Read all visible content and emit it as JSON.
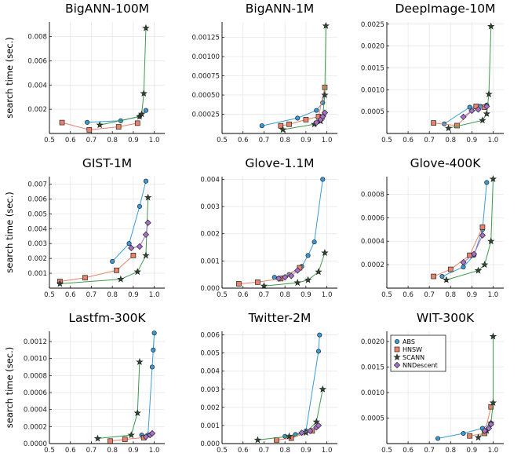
{
  "figure": {
    "ylabel": "search time (sec.)"
  },
  "colors": {
    "ABS": "#3a9bd9",
    "HNSW": "#e8826a",
    "SCANN": "#3c9a4d",
    "NNDescent": "#a870c8"
  },
  "legend": {
    "entries": [
      "ABS",
      "HNSW",
      "SCANN",
      "NNDescent"
    ],
    "position": "top-left",
    "panel": "WIT-300K"
  },
  "chart_data": [
    {
      "type": "line",
      "title": "BigANN-100M",
      "xlim": [
        0.5,
        1.05
      ],
      "ylim": [
        0,
        0.0092
      ],
      "xticks": [
        "0.5",
        "0.6",
        "0.7",
        "0.8",
        "0.9",
        "1.0"
      ],
      "yticks": [
        {
          "v": 0.002,
          "label": "0.002"
        },
        {
          "v": 0.004,
          "label": "0.004"
        },
        {
          "v": 0.006,
          "label": "0.006"
        },
        {
          "v": 0.008,
          "label": "0.008"
        }
      ],
      "series": [
        {
          "name": "ABS",
          "x": [
            0.68,
            0.84,
            0.93,
            0.96
          ],
          "y": [
            0.00092,
            0.00105,
            0.0014,
            0.0019
          ]
        },
        {
          "name": "HNSW",
          "x": [
            0.56,
            0.69,
            0.83,
            0.92
          ],
          "y": [
            0.0009,
            0.0003,
            0.00055,
            0.00085
          ]
        },
        {
          "name": "SCANN",
          "x": [
            0.74,
            0.93,
            0.94,
            0.95,
            0.96
          ],
          "y": [
            0.0007,
            0.0014,
            0.0016,
            0.0033,
            0.0087
          ]
        },
        {
          "name": "NNDescent",
          "x": [],
          "y": []
        }
      ]
    },
    {
      "type": "line",
      "title": "BigANN-1M",
      "xlim": [
        0.5,
        1.05
      ],
      "ylim": [
        0,
        0.00145
      ],
      "xticks": [
        "0.5",
        "0.6",
        "0.7",
        "0.8",
        "0.9",
        "1.0"
      ],
      "yticks": [
        {
          "v": 0.00025,
          "label": "0.00025"
        },
        {
          "v": 0.0005,
          "label": "0.00050"
        },
        {
          "v": 0.00075,
          "label": "0.00075"
        },
        {
          "v": 0.001,
          "label": "0.00100"
        },
        {
          "v": 0.00125,
          "label": "0.00125"
        }
      ],
      "series": [
        {
          "name": "ABS",
          "x": [
            0.69,
            0.86,
            0.95,
            0.98,
            0.99
          ],
          "y": [
            0.0001,
            0.0002,
            0.0003,
            0.0004,
            0.0006
          ]
        },
        {
          "name": "HNSW",
          "x": [
            0.78,
            0.82,
            0.9,
            0.96,
            0.99
          ],
          "y": [
            0.0001,
            0.00012,
            0.00018,
            0.00022,
            0.0006
          ]
        },
        {
          "name": "SCANN",
          "x": [
            0.79,
            0.94,
            0.97,
            0.98,
            0.99,
            0.995
          ],
          "y": [
            5e-05,
            0.00012,
            0.00016,
            0.00022,
            0.0005,
            0.0014
          ]
        },
        {
          "name": "NNDescent",
          "x": [
            0.95,
            0.97,
            0.98,
            0.99
          ],
          "y": [
            0.00014,
            0.00018,
            0.00022,
            0.00027
          ]
        }
      ]
    },
    {
      "type": "line",
      "title": "DeepImage-10M",
      "xlim": [
        0.5,
        1.05
      ],
      "ylim": [
        0,
        0.00255
      ],
      "xticks": [
        "0.5",
        "0.6",
        "0.7",
        "0.8",
        "0.9",
        "1.0"
      ],
      "yticks": [
        {
          "v": 0.0005,
          "label": "0.0005"
        },
        {
          "v": 0.001,
          "label": "0.0010"
        },
        {
          "v": 0.0015,
          "label": "0.0015"
        },
        {
          "v": 0.002,
          "label": "0.0020"
        },
        {
          "v": 0.0025,
          "label": "0.0025"
        }
      ],
      "series": [
        {
          "name": "ABS",
          "x": [
            0.77,
            0.89,
            0.94,
            0.97
          ],
          "y": [
            0.00022,
            0.0006,
            0.00062,
            0.00065
          ]
        },
        {
          "name": "HNSW",
          "x": [
            0.72,
            0.83,
            0.92,
            0.96
          ],
          "y": [
            0.00024,
            0.00018,
            0.00062,
            0.0006
          ]
        },
        {
          "name": "SCANN",
          "x": [
            0.79,
            0.95,
            0.97,
            0.98,
            0.99
          ],
          "y": [
            0.00012,
            0.0003,
            0.00045,
            0.0009,
            0.00245
          ]
        },
        {
          "name": "NNDescent",
          "x": [
            0.86,
            0.9,
            0.93,
            0.97
          ],
          "y": [
            0.00038,
            0.00052,
            0.00055,
            0.00062
          ]
        }
      ]
    },
    {
      "type": "line",
      "title": "GIST-1M",
      "xlim": [
        0.5,
        1.05
      ],
      "ylim": [
        0,
        0.0075
      ],
      "xticks": [
        "0.5",
        "0.6",
        "0.7",
        "0.8",
        "0.9",
        "1.0"
      ],
      "yticks": [
        {
          "v": 0.001,
          "label": "0.001"
        },
        {
          "v": 0.002,
          "label": "0.002"
        },
        {
          "v": 0.003,
          "label": "0.003"
        },
        {
          "v": 0.004,
          "label": "0.004"
        },
        {
          "v": 0.005,
          "label": "0.005"
        },
        {
          "v": 0.006,
          "label": "0.006"
        },
        {
          "v": 0.007,
          "label": "0.007"
        }
      ],
      "series": [
        {
          "name": "ABS",
          "x": [
            0.8,
            0.88,
            0.93,
            0.96
          ],
          "y": [
            0.0018,
            0.003,
            0.0055,
            0.0072
          ]
        },
        {
          "name": "HNSW",
          "x": [
            0.55,
            0.67,
            0.82,
            0.9
          ],
          "y": [
            0.00045,
            0.0007,
            0.0012,
            0.0022
          ]
        },
        {
          "name": "SCANN",
          "x": [
            0.55,
            0.84,
            0.92,
            0.96,
            0.97
          ],
          "y": [
            0.0003,
            0.0006,
            0.0011,
            0.0022,
            0.0061
          ]
        },
        {
          "name": "NNDescent",
          "x": [
            0.89,
            0.93,
            0.96,
            0.97
          ],
          "y": [
            0.0027,
            0.0028,
            0.0036,
            0.0044
          ]
        }
      ]
    },
    {
      "type": "line",
      "title": "Glove-1.1M",
      "xlim": [
        0.5,
        1.05
      ],
      "ylim": [
        0,
        0.0041
      ],
      "xticks": [
        "0.5",
        "0.6",
        "0.7",
        "0.8",
        "0.9",
        "1.0"
      ],
      "yticks": [
        {
          "v": 0.0,
          "label": "0.000"
        },
        {
          "v": 0.001,
          "label": "0.001"
        },
        {
          "v": 0.002,
          "label": "0.002"
        },
        {
          "v": 0.003,
          "label": "0.003"
        },
        {
          "v": 0.004,
          "label": "0.004"
        }
      ],
      "series": [
        {
          "name": "ABS",
          "x": [
            0.75,
            0.82,
            0.88,
            0.91,
            0.94,
            0.98
          ],
          "y": [
            0.0004,
            0.0005,
            0.0008,
            0.0012,
            0.0017,
            0.004
          ]
        },
        {
          "name": "HNSW",
          "x": [
            0.58,
            0.67,
            0.78,
            0.87
          ],
          "y": [
            0.00016,
            0.00022,
            0.00035,
            0.00075
          ]
        },
        {
          "name": "SCANN",
          "x": [
            0.7,
            0.86,
            0.91,
            0.96,
            0.99
          ],
          "y": [
            8e-05,
            0.0002,
            0.0003,
            0.0006,
            0.0013
          ]
        },
        {
          "name": "NNDescent",
          "x": [
            0.77,
            0.8,
            0.83,
            0.86
          ],
          "y": [
            0.00035,
            0.0004,
            0.00045,
            0.00065
          ]
        }
      ]
    },
    {
      "type": "line",
      "title": "Glove-400K",
      "xlim": [
        0.5,
        1.05
      ],
      "ylim": [
        0,
        0.00095
      ],
      "xticks": [
        "0.5",
        "0.6",
        "0.7",
        "0.8",
        "0.9",
        "1.0"
      ],
      "yticks": [
        {
          "v": 0.0002,
          "label": "0.0002"
        },
        {
          "v": 0.0004,
          "label": "0.0004"
        },
        {
          "v": 0.0006,
          "label": "0.0006"
        },
        {
          "v": 0.0008,
          "label": "0.0008"
        }
      ],
      "series": [
        {
          "name": "ABS",
          "x": [
            0.76,
            0.86,
            0.91,
            0.95,
            0.97
          ],
          "y": [
            0.0001,
            0.00018,
            0.00028,
            0.0005,
            0.0009
          ]
        },
        {
          "name": "HNSW",
          "x": [
            0.72,
            0.8,
            0.89,
            0.95
          ],
          "y": [
            0.0001,
            0.00016,
            0.00028,
            0.00052
          ]
        },
        {
          "name": "SCANN",
          "x": [
            0.78,
            0.93,
            0.96,
            0.99,
            1.0
          ],
          "y": [
            7e-05,
            0.00015,
            0.0002,
            0.0004,
            0.00093
          ]
        },
        {
          "name": "NNDescent",
          "x": [
            0.86,
            0.91,
            0.95
          ],
          "y": [
            0.00022,
            0.00029,
            0.00045
          ]
        }
      ]
    },
    {
      "type": "line",
      "title": "Lastfm-300K",
      "xlim": [
        0.5,
        1.05
      ],
      "ylim": [
        0,
        0.00132
      ],
      "xticks": [
        "0.5",
        "0.6",
        "0.7",
        "0.8",
        "0.9",
        "1.0"
      ],
      "yticks": [
        {
          "v": 0.0,
          "label": "0.0000"
        },
        {
          "v": 0.0002,
          "label": "0.0002"
        },
        {
          "v": 0.0004,
          "label": "0.0004"
        },
        {
          "v": 0.0006,
          "label": "0.0006"
        },
        {
          "v": 0.0008,
          "label": "0.0008"
        },
        {
          "v": 0.001,
          "label": "0.0010"
        },
        {
          "v": 0.0012,
          "label": "0.0012"
        }
      ],
      "series": [
        {
          "name": "ABS",
          "x": [
            0.94,
            0.97,
            0.99,
            0.995,
            1.0
          ],
          "y": [
            0.0001,
            0.0001,
            0.0009,
            0.0011,
            0.0013
          ]
        },
        {
          "name": "HNSW",
          "x": [
            0.79,
            0.86,
            0.95
          ],
          "y": [
            3e-05,
            5e-05,
            7e-05
          ]
        },
        {
          "name": "SCANN",
          "x": [
            0.73,
            0.89,
            0.92,
            0.93
          ],
          "y": [
            6e-05,
            0.0001,
            0.00036,
            0.00096
          ]
        },
        {
          "name": "NNDescent",
          "x": [
            0.96,
            0.98,
            0.99
          ],
          "y": [
            8e-05,
            0.0001,
            0.00012
          ]
        }
      ]
    },
    {
      "type": "line",
      "title": "Twitter-2M",
      "xlim": [
        0.5,
        1.05
      ],
      "ylim": [
        0,
        0.0062
      ],
      "xticks": [
        "0.5",
        "0.6",
        "0.7",
        "0.8",
        "0.9",
        "1.0"
      ],
      "yticks": [
        {
          "v": 0.0,
          "label": "0.000"
        },
        {
          "v": 0.001,
          "label": "0.001"
        },
        {
          "v": 0.002,
          "label": "0.002"
        },
        {
          "v": 0.003,
          "label": "0.003"
        },
        {
          "v": 0.004,
          "label": "0.004"
        },
        {
          "v": 0.005,
          "label": "0.005"
        },
        {
          "v": 0.006,
          "label": "0.006"
        }
      ],
      "series": [
        {
          "name": "ABS",
          "x": [
            0.8,
            0.85,
            0.9,
            0.96,
            0.965
          ],
          "y": [
            0.0004,
            0.0005,
            0.0007,
            0.0051,
            0.006
          ]
        },
        {
          "name": "HNSW",
          "x": [
            0.76,
            0.83,
            0.93
          ],
          "y": [
            0.0002,
            0.0003,
            0.0007
          ]
        },
        {
          "name": "SCANN",
          "x": [
            0.67,
            0.82,
            0.9,
            0.95,
            0.98
          ],
          "y": [
            0.0002,
            0.0004,
            0.0006,
            0.0012,
            0.003
          ]
        },
        {
          "name": "NNDescent",
          "x": [
            0.88,
            0.92,
            0.95,
            0.96
          ],
          "y": [
            0.0006,
            0.0007,
            0.0009,
            0.001
          ]
        }
      ]
    },
    {
      "type": "line",
      "title": "WIT-300K",
      "xlim": [
        0.5,
        1.05
      ],
      "ylim": [
        0,
        0.0022
      ],
      "xticks": [
        "0.5",
        "0.6",
        "0.7",
        "0.8",
        "0.9",
        "1.0"
      ],
      "yticks": [
        {
          "v": 0.0005,
          "label": "0.0005"
        },
        {
          "v": 0.001,
          "label": "0.0010"
        },
        {
          "v": 0.0015,
          "label": "0.0015"
        },
        {
          "v": 0.002,
          "label": "0.0020"
        }
      ],
      "series": [
        {
          "name": "ABS",
          "x": [
            0.74,
            0.86,
            0.95,
            0.99
          ],
          "y": [
            0.0001,
            0.0002,
            0.0003,
            0.0004
          ]
        },
        {
          "name": "HNSW",
          "x": [
            0.89,
            0.96,
            0.99
          ],
          "y": [
            0.00015,
            0.0002,
            0.00072
          ]
        },
        {
          "name": "SCANN",
          "x": [
            0.93,
            0.97,
            0.99,
            1.0,
            1.0
          ],
          "y": [
            0.00012,
            0.00025,
            0.0004,
            0.0008,
            0.0021
          ]
        },
        {
          "name": "NNDescent",
          "x": [
            0.96,
            0.98,
            0.99
          ],
          "y": [
            0.00025,
            0.0003,
            0.00038
          ]
        }
      ]
    }
  ]
}
